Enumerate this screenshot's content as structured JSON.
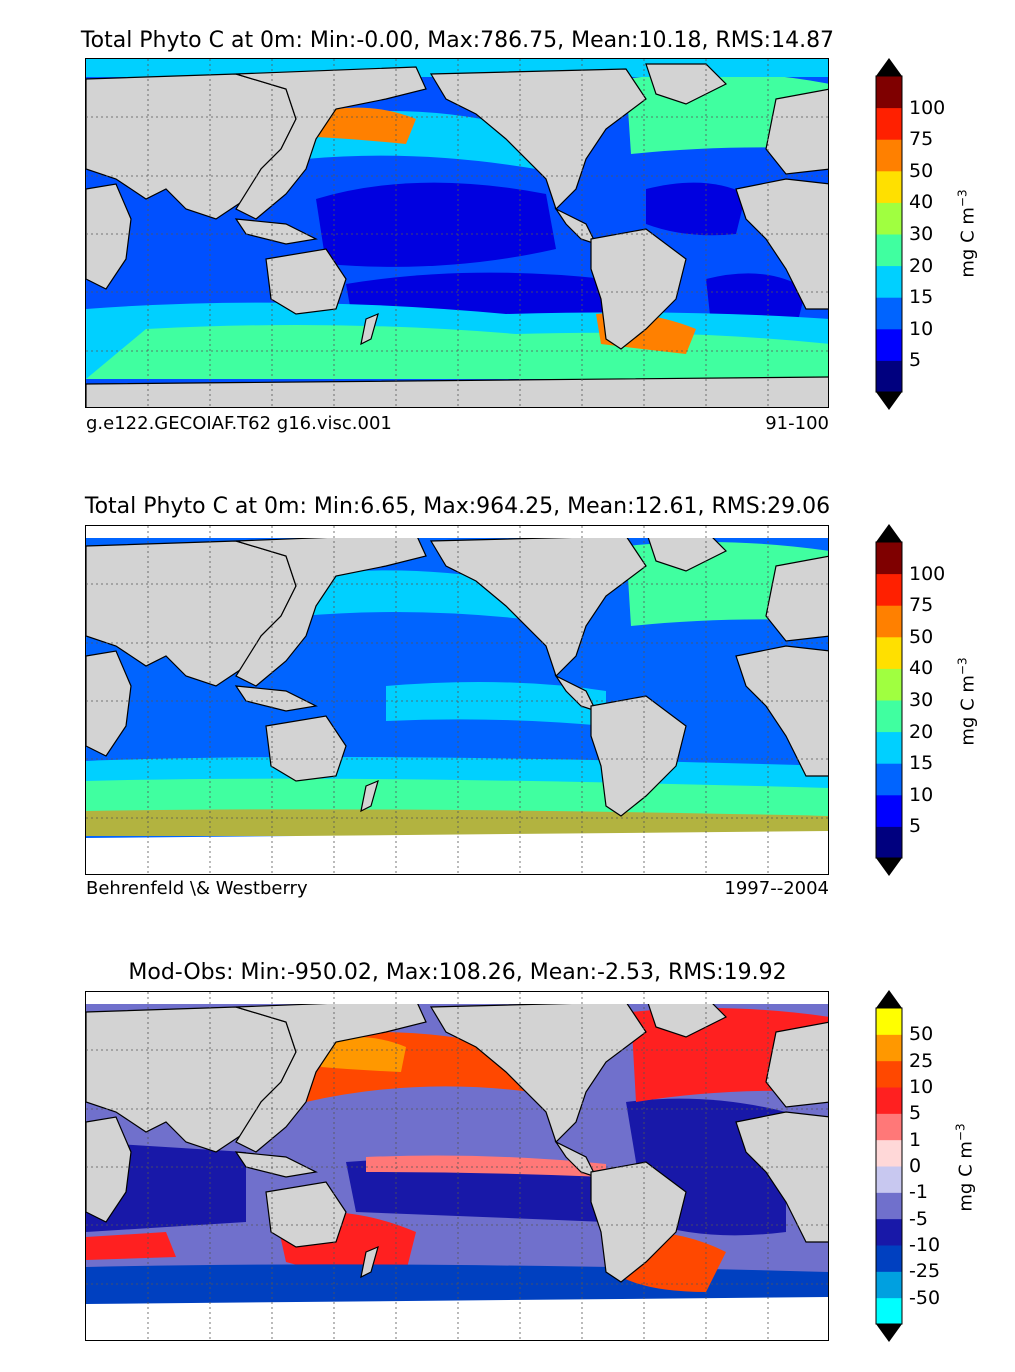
{
  "panels": [
    {
      "title": "Total Phyto C at 0m: Min:-0.00, Max:786.75, Mean:10.18, RMS:14.87",
      "left_label": "g.e122.GECOIAF.T62 g16.visc.001",
      "right_label": "91-100",
      "colorbar": {
        "unit": "mg C m",
        "unit_sup": "−3",
        "ticks": [
          "100",
          "75",
          "50",
          "40",
          "30",
          "20",
          "15",
          "10",
          "5"
        ],
        "colors": [
          "#00007f",
          "#0000ff",
          "#0064ff",
          "#00d0ff",
          "#40ffa0",
          "#a0ff40",
          "#ffe000",
          "#ff8000",
          "#ff2000",
          "#7f0000"
        ]
      }
    },
    {
      "title": "Total Phyto C at 0m: Min:6.65, Max:964.25, Mean:12.61, RMS:29.06",
      "left_label": "Behrenfeld \\& Westberry",
      "right_label": "1997--2004",
      "colorbar": {
        "unit": "mg C m",
        "unit_sup": "−3",
        "ticks": [
          "100",
          "75",
          "50",
          "40",
          "30",
          "20",
          "15",
          "10",
          "5"
        ],
        "colors": [
          "#00007f",
          "#0000ff",
          "#0064ff",
          "#00d0ff",
          "#40ffa0",
          "#a0ff40",
          "#ffe000",
          "#ff8000",
          "#ff2000",
          "#7f0000"
        ]
      }
    },
    {
      "title": "Mod-Obs: Min:-950.02, Max:108.26, Mean:-2.53, RMS:19.92",
      "left_label": "",
      "right_label": "",
      "colorbar": {
        "unit": "mg C m",
        "unit_sup": "−3",
        "ticks": [
          "50",
          "25",
          "10",
          "5",
          "1",
          "0",
          "-1",
          "-5",
          "-10",
          "-25",
          "-50"
        ],
        "colors": [
          "#00ffff",
          "#00a0e0",
          "#0040c0",
          "#1818a8",
          "#7070cc",
          "#c8c8f0",
          "#ffd8d8",
          "#ff7878",
          "#ff2020",
          "#ff4800",
          "#ff9800",
          "#ffff00"
        ]
      }
    }
  ]
}
